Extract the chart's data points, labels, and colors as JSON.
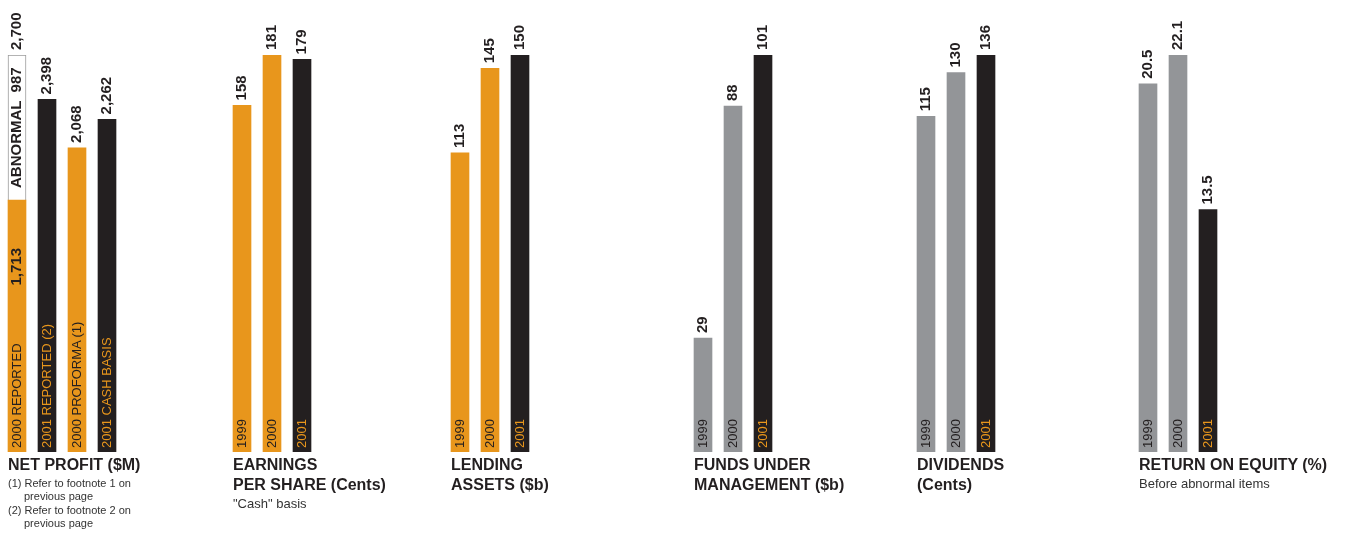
{
  "chart_data": [
    {
      "type": "bar",
      "title": "NET PROFIT ($M)",
      "categories": [
        "2000 REPORTED",
        "2001 REPORTED (2)",
        "2000 PROFORMA (1)",
        "2001 CASH BASIS"
      ],
      "stacked": true,
      "series": [
        {
          "colors": [
            "#e8961c",
            "#231f20",
            "#e8961c",
            "#231f20"
          ],
          "values": [
            1713,
            2398,
            2068,
            2262
          ],
          "value_labels": [
            "1,713",
            null,
            null,
            null
          ]
        },
        {
          "name": "ABNORMAL",
          "color": "#ffffff",
          "values": [
            987,
            null,
            null,
            null
          ],
          "value_labels": [
            "987",
            null,
            null,
            null
          ]
        }
      ],
      "totals": [
        "2,700",
        "2,398",
        "2,068",
        "2,262"
      ],
      "annotations": [
        "(1) Refer to footnote 1 on previous page",
        "(2) Refer to footnote 2 on previous page"
      ]
    },
    {
      "type": "bar",
      "title": "EARNINGS\nPER SHARE (Cents)",
      "subtitle": "\"Cash\" basis",
      "categories": [
        "1999",
        "2000",
        "2001"
      ],
      "values": [
        158,
        181,
        179
      ],
      "colors": [
        "#e8961c",
        "#e8961c",
        "#231f20"
      ],
      "data_labels": true
    },
    {
      "type": "bar",
      "title": "LENDING\nASSETS ($b)",
      "categories": [
        "1999",
        "2000",
        "2001"
      ],
      "values": [
        113,
        145,
        150
      ],
      "colors": [
        "#e8961c",
        "#e8961c",
        "#231f20"
      ],
      "data_labels": true
    },
    {
      "type": "bar",
      "title": "FUNDS UNDER\nMANAGEMENT ($b)",
      "categories": [
        "1999",
        "2000",
        "2001"
      ],
      "values": [
        29,
        88,
        101
      ],
      "colors": [
        "#939598",
        "#939598",
        "#231f20"
      ],
      "data_labels": true
    },
    {
      "type": "bar",
      "title": "DIVIDENDS\n(Cents)",
      "categories": [
        "1999",
        "2000",
        "2001"
      ],
      "values": [
        115,
        130,
        136
      ],
      "colors": [
        "#939598",
        "#939598",
        "#231f20"
      ],
      "data_labels": true
    },
    {
      "type": "bar",
      "title": "RETURN ON EQUITY (%)",
      "subtitle": "Before abnormal items",
      "categories": [
        "1999",
        "2000",
        "2001"
      ],
      "values": [
        20.5,
        22.1,
        13.5
      ],
      "colors": [
        "#939598",
        "#939598",
        "#231f20"
      ],
      "data_labels": true
    }
  ]
}
